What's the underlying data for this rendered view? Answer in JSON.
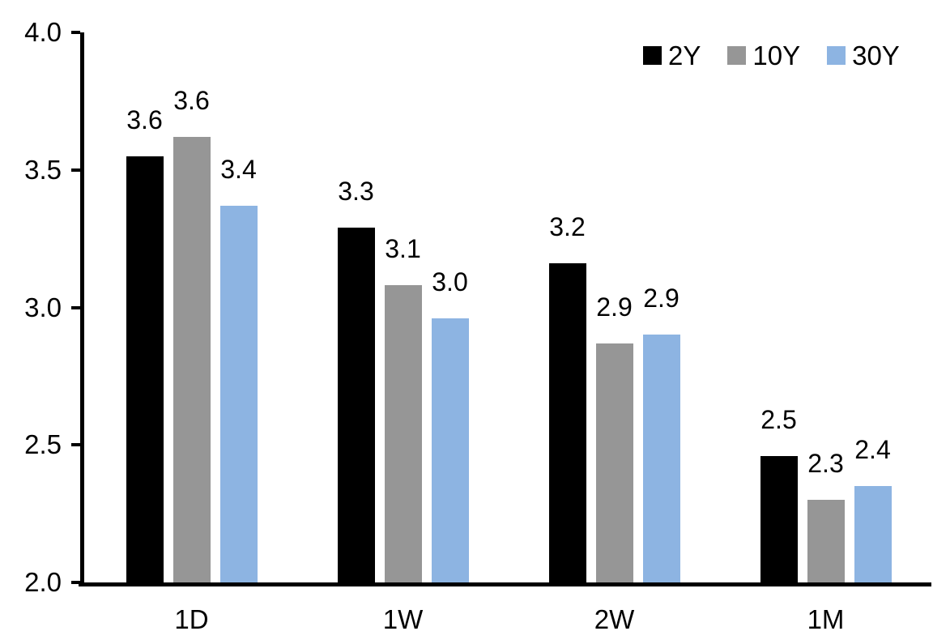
{
  "chart_data": {
    "type": "bar",
    "title": "",
    "xlabel": "",
    "ylabel": "",
    "categories": [
      "1D",
      "1W",
      "2W",
      "1M"
    ],
    "series": [
      {
        "name": "2Y",
        "color": "#000000",
        "values": [
          3.55,
          3.29,
          3.16,
          2.46
        ],
        "labels": [
          "3.6",
          "3.3",
          "3.2",
          "2.5"
        ]
      },
      {
        "name": "10Y",
        "color": "#969696",
        "values": [
          3.62,
          3.08,
          2.87,
          2.3
        ],
        "labels": [
          "3.6",
          "3.1",
          "2.9",
          "2.3"
        ]
      },
      {
        "name": "30Y",
        "color": "#8DB4E2",
        "values": [
          3.37,
          2.96,
          2.9,
          2.35
        ],
        "labels": [
          "3.4",
          "3.0",
          "2.9",
          "2.4"
        ]
      }
    ],
    "ylim": [
      2.0,
      4.0
    ],
    "ytick_labels": [
      "2.0",
      "2.5",
      "3.0",
      "3.5",
      "4.0"
    ],
    "ytick_values": [
      2.0,
      2.5,
      3.0,
      3.5,
      4.0
    ],
    "grid": false,
    "legend_position": "top-right",
    "axis_color": "#000000",
    "text_color": "#000000",
    "background_color": "#ffffff"
  }
}
